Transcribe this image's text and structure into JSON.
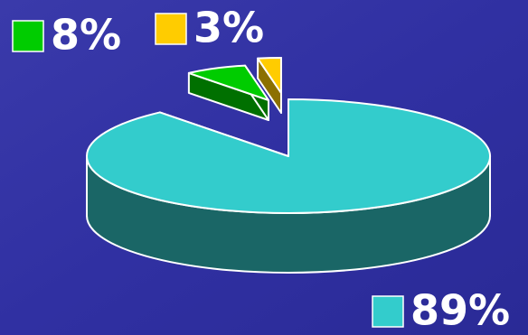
{
  "chart_data": {
    "type": "pie",
    "values": [
      89,
      8,
      3
    ],
    "value_labels": [
      "89%",
      "8%",
      "3%"
    ],
    "colors": [
      "#33cccc",
      "#00cc00",
      "#ffcc00"
    ]
  }
}
